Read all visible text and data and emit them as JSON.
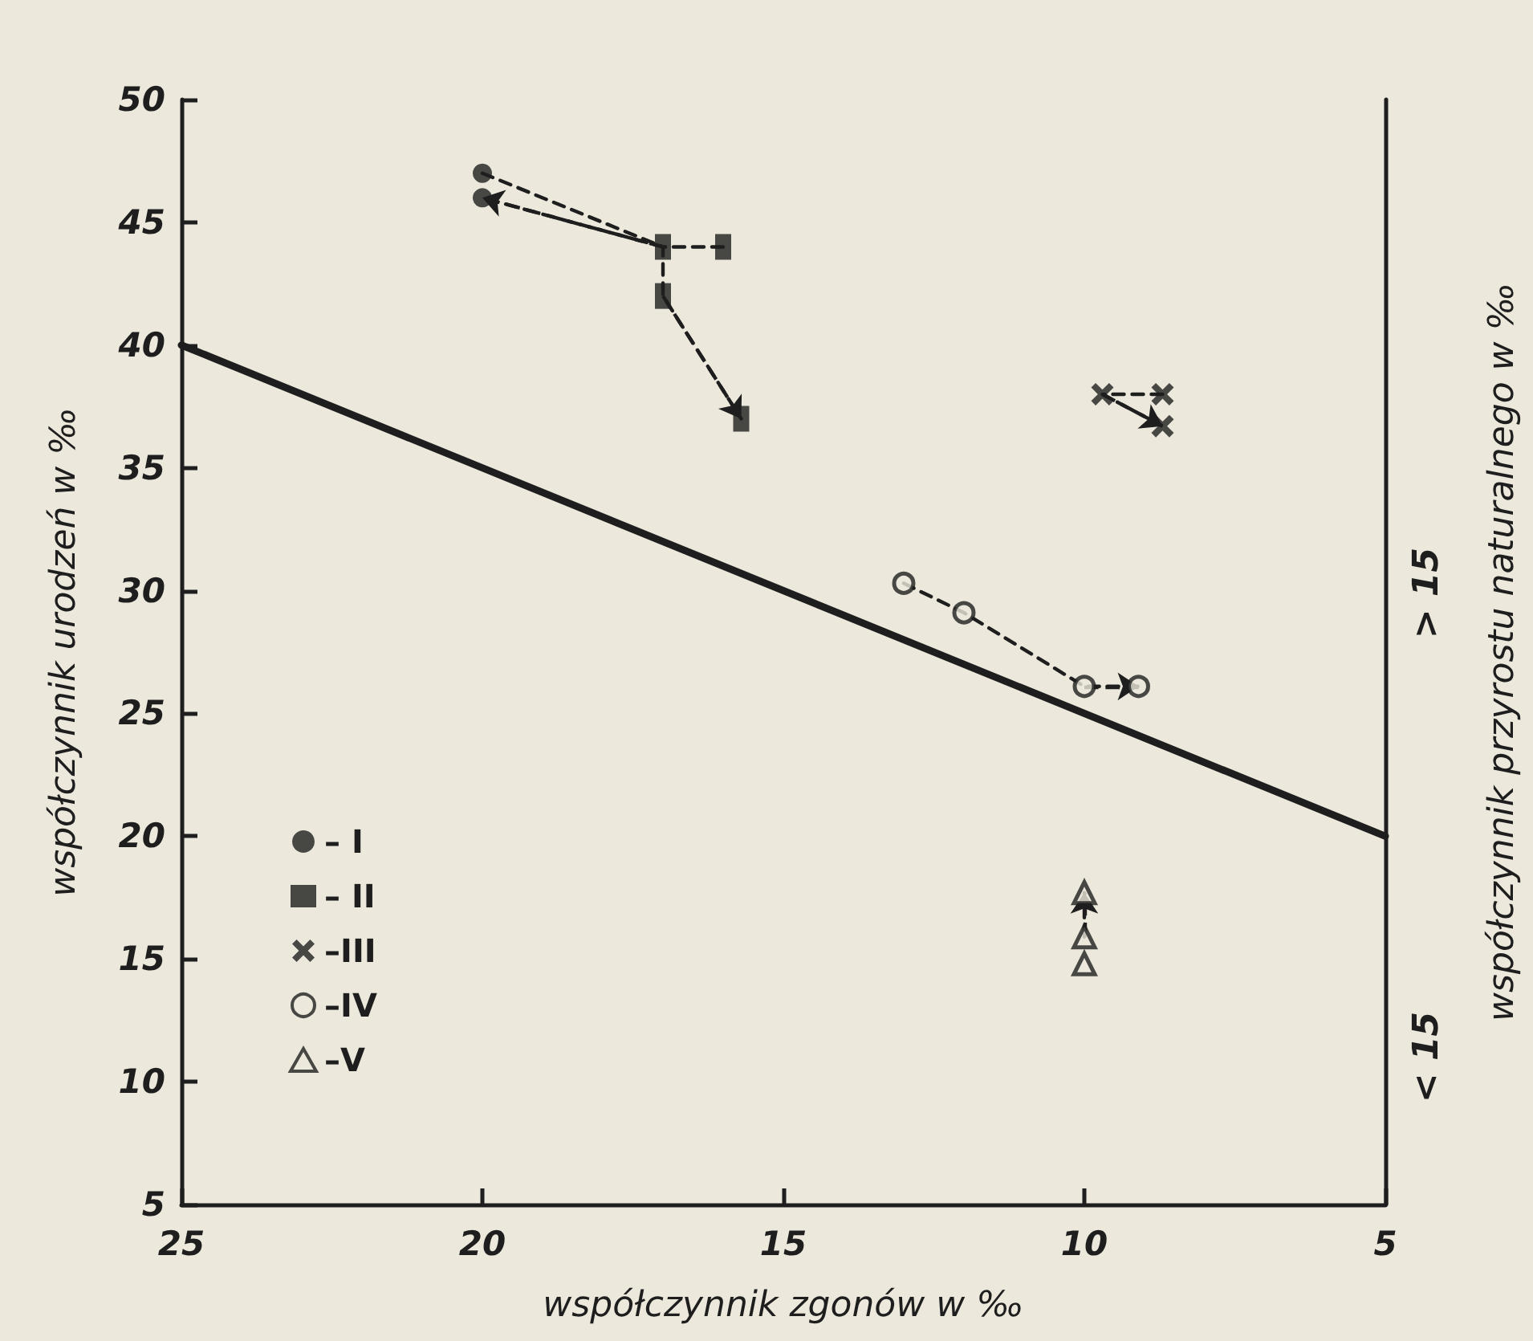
{
  "chart_data": {
    "type": "scatter",
    "xlabel": "współczynnik zgonów w ‰",
    "ylabel": "współczynnik urodzeń w ‰",
    "y2label": "współczynnik przyrostu naturalnego w ‰",
    "annotations": [
      "> 15",
      "< 15"
    ],
    "xlim": [
      25,
      5
    ],
    "ylim": [
      5,
      50
    ],
    "xticks": [
      25,
      20,
      15,
      10,
      5
    ],
    "yticks": [
      5,
      10,
      15,
      20,
      25,
      30,
      35,
      40,
      45,
      50
    ],
    "grid": false,
    "legend": "bottom left",
    "series": [
      {
        "type": "line",
        "color": "#1e1e1e",
        "x": [
          25,
          5
        ],
        "values": [
          40,
          20
        ],
        "line_style": "solid",
        "marker": "none"
      },
      {
        "type": "line",
        "color": "#1e1e1e",
        "x": [
          20,
          17,
          20
        ],
        "values": [
          47,
          44,
          46
        ],
        "line_style": "dashed",
        "marker": "none"
      },
      {
        "type": "line",
        "color": "#1e1e1e",
        "x": [
          16,
          17,
          17,
          15.7
        ],
        "values": [
          44,
          44,
          42,
          37
        ],
        "line_style": "dashed",
        "marker": "none"
      },
      {
        "type": "line",
        "color": "#1e1e1e",
        "x": [
          8.7,
          9.7,
          8.7
        ],
        "values": [
          38,
          38,
          36.7
        ],
        "line_style": "dashed",
        "marker": "none"
      },
      {
        "type": "line",
        "color": "#1e1e1e",
        "x": [
          13,
          12,
          10,
          9.1
        ],
        "values": [
          30.3,
          29.1,
          26.1,
          26.1
        ],
        "line_style": "dashed",
        "marker": "none"
      },
      {
        "type": "line",
        "color": "#1e1e1e",
        "x": [
          10,
          10
        ],
        "values": [
          15.9,
          17.7
        ],
        "line_style": "dashed",
        "marker": "none"
      },
      {
        "name": "– I",
        "color": "#1e1e1e",
        "marker": "circle",
        "x": [
          20,
          20
        ],
        "values": [
          47,
          46
        ]
      },
      {
        "name": "– II",
        "color": "#1e1e1e",
        "marker": "square",
        "x": [
          17,
          16,
          17,
          15.7
        ],
        "values": [
          44,
          44,
          42,
          37
        ]
      },
      {
        "name": "–III",
        "color": "#1e1e1e",
        "marker": "cross",
        "x": [
          9.7,
          8.7,
          8.7
        ],
        "values": [
          38,
          38,
          36.7
        ]
      },
      {
        "name": "–IV",
        "color": "#1e1e1e",
        "marker": "circle",
        "x": [
          13,
          12,
          10,
          9.1
        ],
        "values": [
          30.3,
          29.1,
          26.1,
          26.1
        ]
      },
      {
        "name": "–V",
        "color": "#1e1e1e",
        "marker": "triangle",
        "x": [
          10,
          10,
          10
        ],
        "values": [
          17.7,
          15.9,
          14.8
        ]
      }
    ]
  }
}
